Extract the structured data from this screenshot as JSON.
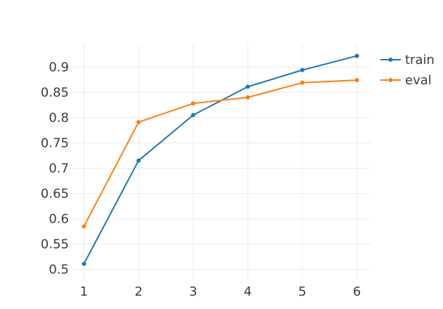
{
  "chart_data": {
    "type": "line",
    "title": "",
    "xlabel": "",
    "ylabel": "",
    "x": [
      1,
      2,
      3,
      4,
      5,
      6
    ],
    "xticks": [
      "1",
      "2",
      "3",
      "4",
      "5",
      "6"
    ],
    "yticks": [
      "0.5",
      "0.55",
      "0.6",
      "0.65",
      "0.7",
      "0.75",
      "0.8",
      "0.85",
      "0.9"
    ],
    "xlim": [
      0.75,
      6.25
    ],
    "ylim": [
      0.48,
      0.945
    ],
    "grid": true,
    "legend_position": "top-right",
    "series": [
      {
        "name": "train",
        "color": "#1f77b4",
        "values": [
          0.511,
          0.715,
          0.805,
          0.861,
          0.894,
          0.922
        ]
      },
      {
        "name": "eval",
        "color": "#ff7f0e",
        "values": [
          0.585,
          0.791,
          0.828,
          0.84,
          0.869,
          0.874
        ]
      }
    ]
  }
}
